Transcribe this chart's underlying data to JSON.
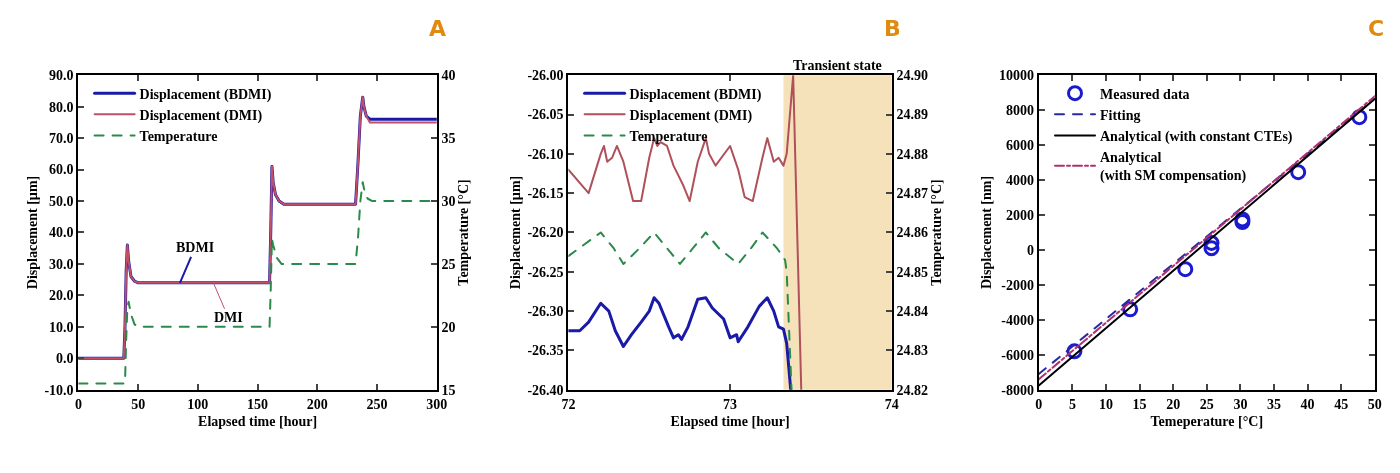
{
  "chart_data": [
    {
      "type": "line",
      "title": "A",
      "xlabel": "Elapsed time [hour]",
      "ylabel": "Displacement [µm]",
      "y2label": "Temperature [°C]",
      "xlim": [
        0,
        300
      ],
      "xticks": [
        0,
        50,
        100,
        150,
        200,
        250,
        300
      ],
      "ylim": [
        -10,
        90
      ],
      "yticks": [
        {
          "value": -10,
          "label": "-10.0"
        },
        {
          "value": 0,
          "label": "0.0"
        },
        {
          "value": 10,
          "label": "10.0"
        },
        {
          "value": 20,
          "label": "20.0"
        },
        {
          "value": 30,
          "label": "30.0"
        },
        {
          "value": 40,
          "label": "40.0"
        },
        {
          "value": 50,
          "label": "50.0"
        },
        {
          "value": 60,
          "label": "60.0"
        },
        {
          "value": 70,
          "label": "70.0"
        },
        {
          "value": 80,
          "label": "80.0"
        },
        {
          "value": 90,
          "label": "90.0"
        }
      ],
      "y2lim": [
        15,
        40
      ],
      "y2ticks": [
        15,
        20,
        25,
        30,
        35,
        40
      ],
      "legend": "top left",
      "grid": false,
      "marker": "none",
      "series": [
        {
          "name": "Displacement (BDMI)",
          "color": "#1a1aa8",
          "line_style": "solid",
          "x": [
            0,
            38,
            39,
            40,
            41,
            42,
            44,
            47,
            50,
            100,
            160,
            161,
            162,
            163,
            165,
            168,
            172,
            200,
            232,
            234,
            236,
            238,
            239,
            241,
            244,
            250,
            300
          ],
          "values": [
            0,
            0,
            10,
            28,
            36,
            31,
            26,
            24.5,
            24,
            24,
            24,
            40,
            61,
            56,
            52,
            50,
            49,
            49,
            49,
            62,
            77,
            83,
            80,
            77,
            76,
            76,
            76
          ]
        },
        {
          "name": "Displacement (DMI)",
          "color": "#c0506a",
          "line_style": "solid",
          "x": [
            0,
            38,
            39,
            40,
            41,
            42,
            44,
            47,
            50,
            100,
            160,
            161,
            162,
            163,
            165,
            168,
            172,
            200,
            232,
            234,
            236,
            238,
            239,
            241,
            244,
            250,
            300
          ],
          "values": [
            0,
            0,
            10,
            28,
            36,
            31,
            26,
            24.5,
            24,
            24,
            24,
            40,
            61,
            56,
            52,
            50,
            49,
            49,
            49,
            62,
            77,
            83,
            80,
            77,
            75,
            75,
            75
          ]
        },
        {
          "name": "Temperature",
          "color": "#2a8a4a",
          "line_style": "dashed",
          "axis": "y2",
          "x": [
            0,
            39,
            40,
            41,
            42,
            44,
            47,
            50,
            100,
            160,
            161,
            162,
            163,
            166,
            170,
            200,
            232,
            234,
            236,
            238,
            239,
            242,
            246,
            250,
            300
          ],
          "values": [
            15.5,
            15.5,
            19,
            21.5,
            22,
            21,
            20.2,
            20,
            20,
            20,
            23,
            27,
            26.5,
            25.5,
            25,
            25,
            25,
            27,
            30,
            31.5,
            31,
            30.2,
            30,
            30,
            30
          ]
        }
      ],
      "annotations": [
        {
          "text": "BDMI",
          "x": 85,
          "y": 24
        },
        {
          "text": "DMI",
          "x": 113,
          "y": 24
        }
      ]
    },
    {
      "type": "line",
      "title": "B",
      "xlabel": "Elapsed time [hour]",
      "ylabel": "Displacement [µm]",
      "y2label": "Temperature [°C]",
      "xlim": [
        72,
        74
      ],
      "xticks": [
        72,
        73,
        74
      ],
      "ylim": [
        -26.4,
        -26.0
      ],
      "yticks": [
        {
          "value": -26.4,
          "label": "-26.40"
        },
        {
          "value": -26.35,
          "label": "-26.35"
        },
        {
          "value": -26.3,
          "label": "-26.30"
        },
        {
          "value": -26.25,
          "label": "-26.25"
        },
        {
          "value": -26.2,
          "label": "-26.20"
        },
        {
          "value": -26.15,
          "label": "-26.15"
        },
        {
          "value": -26.1,
          "label": "-26.10"
        },
        {
          "value": -26.05,
          "label": "-26.05"
        },
        {
          "value": -26.0,
          "label": "-26.00"
        }
      ],
      "y2lim": [
        24.82,
        24.9
      ],
      "y2ticks": [
        {
          "value": 24.82,
          "label": "24.82"
        },
        {
          "value": 24.83,
          "label": "24.83"
        },
        {
          "value": 24.84,
          "label": "24.84"
        },
        {
          "value": 24.85,
          "label": "24.85"
        },
        {
          "value": 24.86,
          "label": "24.86"
        },
        {
          "value": 24.87,
          "label": "24.87"
        },
        {
          "value": 24.88,
          "label": "24.88"
        },
        {
          "value": 24.89,
          "label": "24.89"
        },
        {
          "value": 24.9,
          "label": "24.90"
        }
      ],
      "legend": "top left",
      "grid": false,
      "marker": "none",
      "bands": [
        {
          "axis": "x",
          "from": 73.33,
          "to": 74,
          "label": "Transient state",
          "color": "#f5e2bb"
        }
      ],
      "series": [
        {
          "name": "Displacement (BDMI)",
          "color": "#1a1aa8",
          "line_style": "solid",
          "x": [
            72.0,
            72.07,
            72.125,
            72.2,
            72.25,
            72.29,
            72.34,
            72.39,
            72.45,
            72.5,
            72.53,
            72.56,
            72.62,
            72.65,
            72.68,
            72.7,
            72.74,
            72.8,
            72.85,
            72.89,
            72.96,
            73.0,
            73.04,
            73.05,
            73.11,
            73.18,
            73.23,
            73.27,
            73.3,
            73.33,
            73.35,
            73.375
          ],
          "values": [
            -26.325,
            -26.325,
            -26.314,
            -26.29,
            -26.3,
            -26.325,
            -26.345,
            -26.33,
            -26.314,
            -26.3,
            -26.283,
            -26.29,
            -26.32,
            -26.334,
            -26.33,
            -26.336,
            -26.32,
            -26.285,
            -26.283,
            -26.296,
            -26.31,
            -26.334,
            -26.33,
            -26.339,
            -26.32,
            -26.294,
            -26.283,
            -26.3,
            -26.32,
            -26.323,
            -26.341,
            -26.4
          ]
        },
        {
          "name": "Displacement (DMI)",
          "color": "#b0505a",
          "line_style": "solid",
          "x": [
            72.0,
            72.125,
            72.2,
            72.22,
            72.24,
            72.27,
            72.3,
            72.34,
            72.4,
            72.45,
            72.5,
            72.53,
            72.55,
            72.57,
            72.61,
            72.65,
            72.71,
            72.75,
            72.8,
            72.85,
            72.87,
            72.91,
            73.0,
            73.05,
            73.09,
            73.14,
            73.2,
            73.23,
            73.27,
            73.3,
            73.33,
            73.35,
            73.39,
            73.44
          ],
          "values": [
            -26.12,
            -26.15,
            -26.1,
            -26.09,
            -26.11,
            -26.105,
            -26.09,
            -26.11,
            -26.16,
            -26.16,
            -26.105,
            -26.08,
            -26.09,
            -26.085,
            -26.09,
            -26.115,
            -26.14,
            -26.16,
            -26.11,
            -26.08,
            -26.1,
            -26.115,
            -26.09,
            -26.12,
            -26.155,
            -26.16,
            -26.105,
            -26.08,
            -26.11,
            -26.105,
            -26.115,
            -26.1,
            -26.0,
            -26.4
          ]
        },
        {
          "name": "Temperature",
          "color": "#2a8a4a",
          "line_style": "dashed",
          "axis": "y2",
          "x": [
            72.0,
            72.1,
            72.2,
            72.28,
            72.34,
            72.44,
            72.53,
            72.61,
            72.69,
            72.77,
            72.85,
            72.93,
            73.05,
            73.13,
            73.2,
            73.29,
            73.34,
            73.35,
            73.38
          ],
          "values": [
            24.854,
            24.857,
            24.86,
            24.856,
            24.852,
            24.856,
            24.86,
            24.856,
            24.852,
            24.856,
            24.86,
            24.856,
            24.852,
            24.856,
            24.86,
            24.856,
            24.853,
            24.85,
            24.82
          ]
        }
      ]
    },
    {
      "type": "scatter",
      "title": "C",
      "xlabel": "Temeperature [°C]",
      "ylabel": "Displacement [nm]",
      "xlim": [
        0,
        50
      ],
      "xticks": [
        0,
        5,
        10,
        15,
        20,
        25,
        30,
        35,
        40,
        45,
        50
      ],
      "ylim": [
        -8000,
        10000
      ],
      "yticks": [
        -8000,
        -6000,
        -4000,
        -2000,
        0,
        2000,
        4000,
        6000,
        8000,
        10000
      ],
      "legend": "top left",
      "grid": false,
      "series": [
        {
          "name": "Measured data",
          "type": "scatter",
          "marker": "circle",
          "color": "#1a1ad0",
          "x": [
            5.3,
            13.6,
            21.8,
            25.7,
            25.7,
            30.3,
            30.3,
            38.6,
            47.7
          ],
          "values": [
            -5800,
            -3400,
            -1100,
            400,
            100,
            1600,
            1750,
            4450,
            7600
          ]
        },
        {
          "name": "Fitting",
          "type": "line",
          "line_style": "dashed",
          "color": "#2a2aa0",
          "x": [
            0,
            50
          ],
          "values": [
            -7100,
            8650
          ]
        },
        {
          "name": "Analytical (with constant CTEs)",
          "type": "line",
          "line_style": "solid",
          "color": "#000000",
          "x": [
            0,
            50
          ],
          "values": [
            -7750,
            8650
          ]
        },
        {
          "name": "Analytical\n(with SM compensation)",
          "type": "line",
          "line_style": "dashdot",
          "color": "#b03070",
          "x": [
            0,
            50
          ],
          "values": [
            -7400,
            8800
          ]
        }
      ]
    }
  ]
}
